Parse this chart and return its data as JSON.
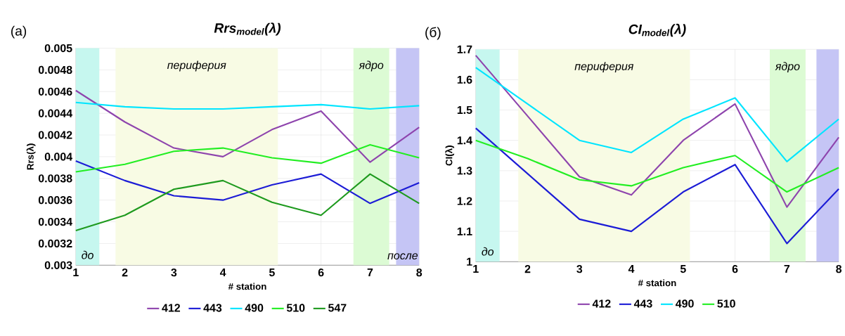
{
  "chart_data": [
    {
      "type": "line",
      "title": "Rrs$_{model}$(λ)",
      "xlabel": "# station",
      "ylabel": "Rrs(λ)",
      "annotations": [
        "(a)"
      ],
      "x": [
        1,
        2,
        3,
        4,
        5,
        6,
        7,
        8
      ],
      "series": [
        {
          "name": "412",
          "color": "#8e44ad",
          "values": [
            0.00461,
            0.00432,
            0.00408,
            0.004,
            0.00425,
            0.00442,
            0.00395,
            0.00427
          ]
        },
        {
          "name": "443",
          "color": "#1c1cd6",
          "values": [
            0.00396,
            0.00378,
            0.00364,
            0.0036,
            0.00374,
            0.00384,
            0.00357,
            0.00376
          ]
        },
        {
          "name": "490",
          "color": "#00e5ff",
          "values": [
            0.0045,
            0.00446,
            0.00444,
            0.00444,
            0.00446,
            0.00448,
            0.00444,
            0.00447
          ]
        },
        {
          "name": "510",
          "color": "#22ee22",
          "values": [
            0.00386,
            0.00393,
            0.00405,
            0.00408,
            0.00399,
            0.00394,
            0.00411,
            0.00399
          ]
        },
        {
          "name": "547",
          "color": "#1e9a1e",
          "values": [
            0.00332,
            0.00346,
            0.0037,
            0.00378,
            0.00358,
            0.00346,
            0.00384,
            0.00357
          ]
        }
      ],
      "bands": [
        {
          "axis": "x",
          "from": 1,
          "to": 1.48,
          "label": "до",
          "color": "#c6f7ef"
        },
        {
          "axis": "x",
          "from": 1.81,
          "to": 5.12,
          "label": "периферия",
          "color": "#f8fbe4"
        },
        {
          "axis": "x",
          "from": 6.66,
          "to": 7.39,
          "label": "ядро",
          "color": "#dcfbd4"
        },
        {
          "axis": "x",
          "from": 7.53,
          "to": 8,
          "label": "после",
          "color": "#c5c5f5"
        }
      ],
      "xlim": [
        1,
        8
      ],
      "xticks": [
        1,
        2,
        3,
        4,
        5,
        6,
        7,
        8
      ],
      "ylim": [
        0.003,
        0.005
      ],
      "yticks": [
        0.003,
        0.0032,
        0.0034,
        0.0036,
        0.0038,
        0.004,
        0.0042,
        0.0044,
        0.0046,
        0.0048,
        0.005
      ],
      "grid": true,
      "legend": "bottom",
      "marker": "none",
      "line_style": "solid"
    },
    {
      "type": "line",
      "title": "CI$_{model}$(λ)",
      "xlabel": "# station",
      "ylabel": "CI(λ)",
      "annotations": [
        "(б)"
      ],
      "x": [
        1,
        2,
        3,
        4,
        5,
        6,
        7,
        8
      ],
      "series": [
        {
          "name": "412",
          "color": "#8e44ad",
          "values": [
            1.68,
            1.48,
            1.28,
            1.22,
            1.4,
            1.52,
            1.18,
            1.41
          ]
        },
        {
          "name": "443",
          "color": "#1c1cd6",
          "values": [
            1.44,
            1.29,
            1.14,
            1.1,
            1.23,
            1.32,
            1.06,
            1.24
          ]
        },
        {
          "name": "490",
          "color": "#00e5ff",
          "values": [
            1.64,
            1.52,
            1.4,
            1.36,
            1.47,
            1.54,
            1.33,
            1.47
          ]
        },
        {
          "name": "510",
          "color": "#22ee22",
          "values": [
            1.4,
            1.34,
            1.27,
            1.25,
            1.31,
            1.35,
            1.23,
            1.31
          ]
        }
      ],
      "bands": [
        {
          "axis": "x",
          "from": 1,
          "to": 1.46,
          "label": "до",
          "color": "#c6f7ef"
        },
        {
          "axis": "x",
          "from": 1.82,
          "to": 5.13,
          "label": "периферия",
          "color": "#f8fbe4"
        },
        {
          "axis": "x",
          "from": 6.67,
          "to": 7.36,
          "label": "ядро",
          "color": "#dcfbd4"
        },
        {
          "axis": "x",
          "from": 7.57,
          "to": 8,
          "color": "#c5c5f5"
        }
      ],
      "xlim": [
        1,
        8
      ],
      "xticks": [
        1,
        2,
        3,
        4,
        5,
        6,
        7,
        8
      ],
      "ylim": [
        1,
        1.7
      ],
      "yticks": [
        1,
        1.1,
        1.2,
        1.3,
        1.4,
        1.5,
        1.6,
        1.7
      ],
      "grid": true,
      "legend": "bottom",
      "marker": "none",
      "line_style": "solid"
    }
  ]
}
